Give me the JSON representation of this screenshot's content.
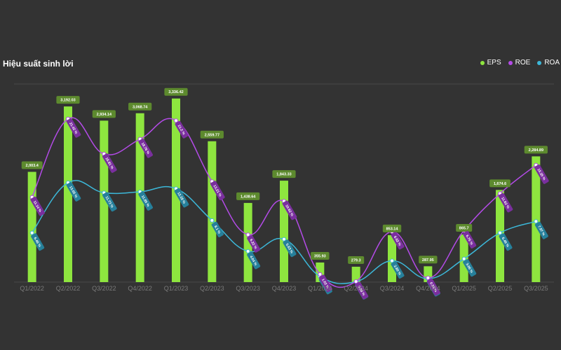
{
  "chart_data": {
    "type": "bar",
    "title": "Hiệu suất sinh lời",
    "categories": [
      "Q1/2022",
      "Q2/2022",
      "Q3/2022",
      "Q4/2022",
      "Q1/2023",
      "Q2/2023",
      "Q3/2023",
      "Q4/2023",
      "Q1/2024",
      "Q2/2024",
      "Q3/2024",
      "Q4/2024",
      "Q1/2025",
      "Q2/2025",
      "Q3/2025"
    ],
    "series": [
      {
        "name": "EPS",
        "type": "bar",
        "color": "#8ee53f",
        "values": [
          2003.4,
          3192.03,
          2934.14,
          3068.74,
          3336.42,
          2559.77,
          1438.64,
          1843.33,
          355.93,
          279.3,
          853.14,
          287.95,
          865.7,
          1674.6,
          2284.89
        ],
        "labels": [
          "2,003.4",
          "3,192.03",
          "2,934.14",
          "3,068.74",
          "3,336.42",
          "2,559.77",
          "1,438.64",
          "1,843.33",
          "355.93",
          "279.3",
          "853.14",
          "287.95",
          "865.7",
          "1,674.6",
          "2,284.89"
        ]
      },
      {
        "name": "ROE",
        "type": "line",
        "color": "#b44be8",
        "values": [
          11.14,
          21.42,
          16.81,
          18.76,
          21.2,
          13.21,
          6.22,
          10.62,
          1.02,
          0.08,
          6.62,
          0.55,
          6.76,
          11.62,
          15.35
        ],
        "labels": [
          "11.14 %",
          "21.42 %",
          "16.81 %",
          "18.76 %",
          "21.2 %",
          "13.21 %",
          "6.22 %",
          "10.62 %",
          "1.02 %",
          "0.08 %",
          "6.62 %",
          "0.55 %",
          "6.76 %",
          "11.62 %",
          "15.35 %"
        ]
      },
      {
        "name": "ROA",
        "type": "line",
        "color": "#3cb8d9",
        "values": [
          6.46,
          13.05,
          11.73,
          11.85,
          12.26,
          8.1,
          4.04,
          5.63,
          0.74,
          0.05,
          2.8,
          0.45,
          3.06,
          6.46,
          7.97
        ],
        "labels": [
          "6.46 %",
          "13.05 %",
          "11.73 %",
          "11.85 %",
          "12.26 %",
          "8.1 %",
          "4.04 %",
          "5.63 %",
          "0.74 %",
          "0.05 %",
          "2.80 %",
          "0.45 %",
          "3.06 %",
          "6.46 %",
          "7.97 %"
        ]
      }
    ],
    "grid": false,
    "legend_position": "top-right",
    "ylim_eps": [
      0,
      3600
    ],
    "ylim_ratio": [
      0,
      26
    ]
  }
}
